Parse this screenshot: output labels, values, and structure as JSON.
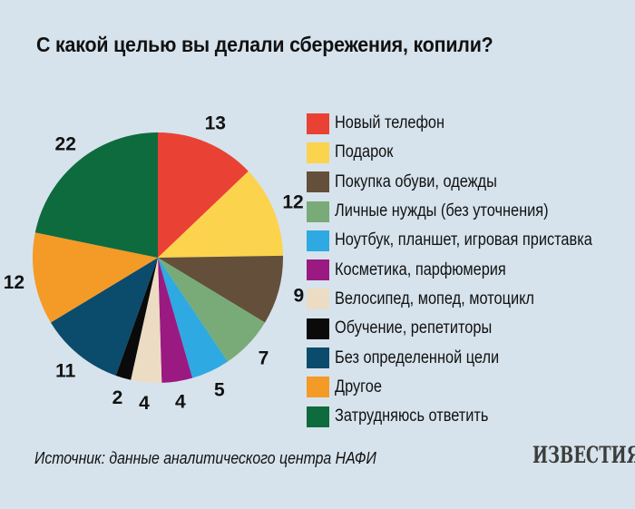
{
  "title": "С какой целью вы делали сбережения, копили?",
  "source": "Источник: данные аналитического центра НАФИ",
  "logo_text": "ИЗВЕСТИЯ",
  "chart_data": {
    "type": "pie",
    "title": "С какой целью вы делали сбережения, копили?",
    "start_angle_deg": 0,
    "direction": "clockwise",
    "slices": [
      {
        "label": "Новый телефон",
        "value": 13,
        "color": "#ea4135"
      },
      {
        "label": "Подарок",
        "value": 12,
        "color": "#fcd34d"
      },
      {
        "label": "Покупка обуви, одежды",
        "value": 9,
        "color": "#634f3a"
      },
      {
        "label": "Личные нужды (без уточнения)",
        "value": 7,
        "color": "#78ab78"
      },
      {
        "label": "Ноутбук, планшет, игровая приставка",
        "value": 5,
        "color": "#2ea9e2"
      },
      {
        "label": "Косметика, парфюмерия",
        "value": 4,
        "color": "#9a1a82"
      },
      {
        "label": "Велосипед, мопед, мотоцикл",
        "value": 4,
        "color": "#ecdcc3"
      },
      {
        "label": "Обучение, репетиторы",
        "value": 2,
        "color": "#0a0a0a"
      },
      {
        "label": "Без определенной цели",
        "value": 11,
        "color": "#0b4b6c"
      },
      {
        "label": "Другое",
        "value": 12,
        "color": "#f49a27"
      },
      {
        "label": "Затрудняюсь ответить",
        "value": 22,
        "color": "#0e6b3e"
      }
    ]
  }
}
